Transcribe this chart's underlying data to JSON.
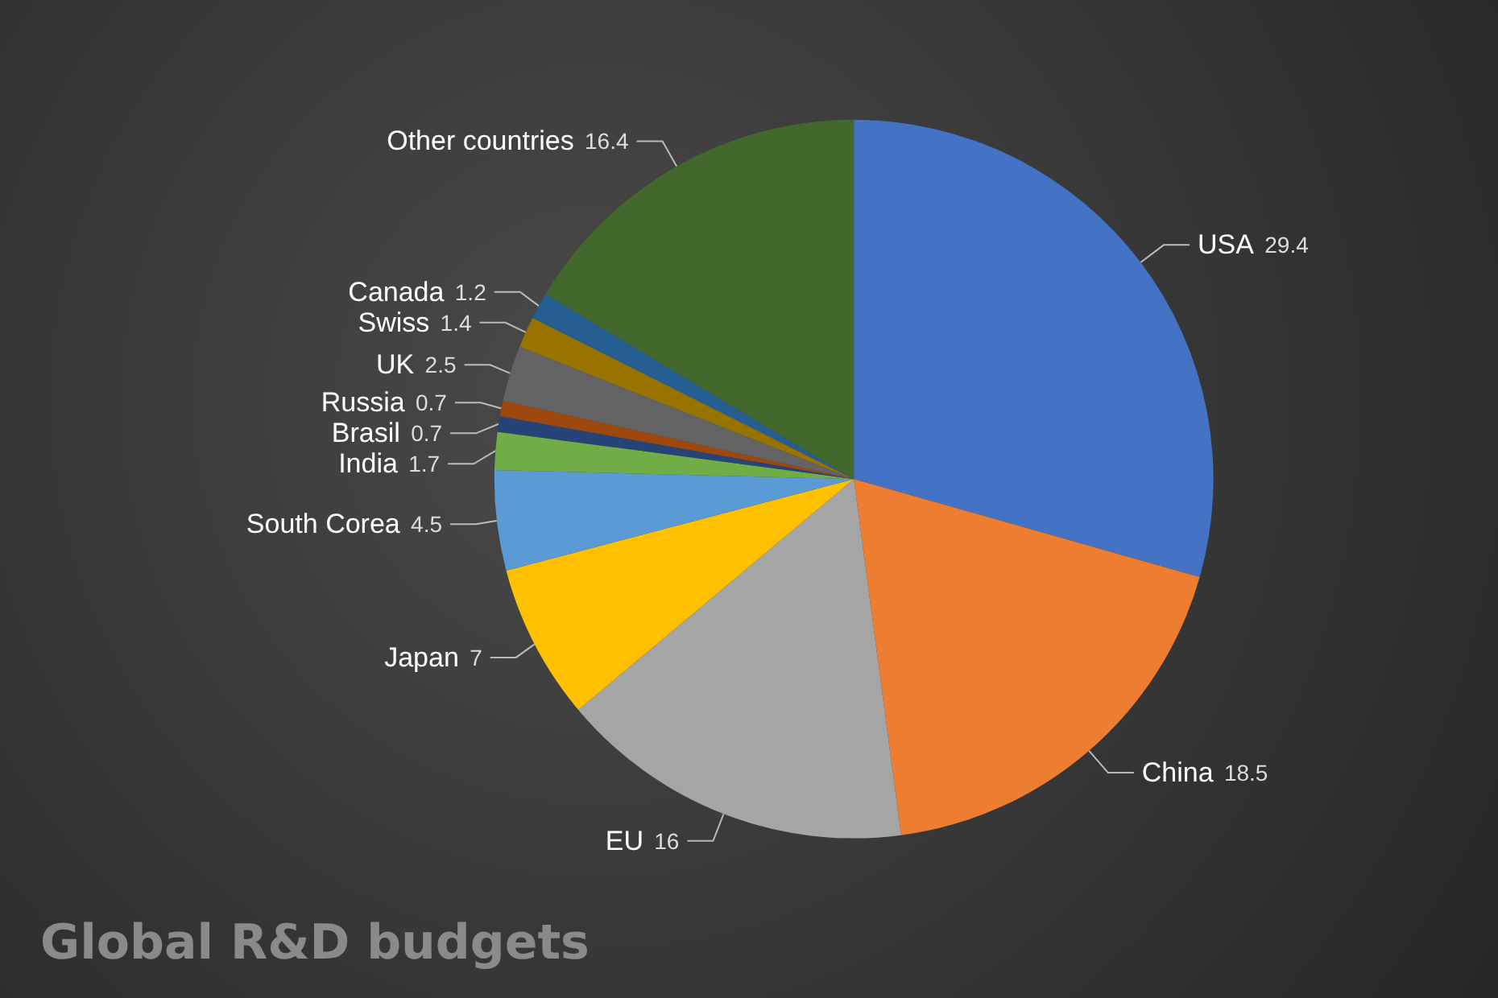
{
  "chart_data": {
    "type": "pie",
    "title": "Global R&D budgets",
    "categories": [
      "USA",
      "China",
      "EU",
      "Japan",
      "South Corea",
      "India",
      "Brasil",
      "Russia",
      "UK",
      "Swiss",
      "Canada",
      "Other countries"
    ],
    "values": [
      29.4,
      18.5,
      16,
      7,
      4.5,
      1.7,
      0.7,
      0.7,
      2.5,
      1.4,
      1.2,
      16.4
    ],
    "colors": [
      "#4472c4",
      "#ed7d31",
      "#a5a5a5",
      "#ffc000",
      "#5b9bd5",
      "#70ad47",
      "#264478",
      "#9e480e",
      "#636363",
      "#997300",
      "#255e91",
      "#43682b"
    ],
    "data_labels": true,
    "legend": false
  }
}
